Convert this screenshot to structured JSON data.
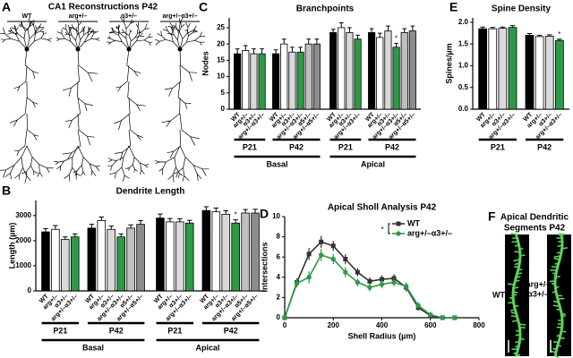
{
  "panel_letters": [
    "A",
    "B",
    "C",
    "D",
    "E",
    "F"
  ],
  "panel_a": {
    "title": "CA1 Reconstructions P42",
    "labels": [
      "WT",
      "arg+/–",
      "α3+/–",
      "arg+/–α3+/–"
    ]
  },
  "panel_f": {
    "title_lines": [
      "Apical Dendritic",
      "Segments P42"
    ],
    "labels": [
      {
        "lines": [
          "WT"
        ]
      },
      {
        "lines": [
          "arg+/–",
          "α3+/–"
        ]
      }
    ]
  },
  "chart_data": [
    {
      "type": "grouped_bar",
      "title": "Dendrite Length",
      "ylabel": "Length (µm)",
      "ylim": [
        0,
        3600
      ],
      "yticks": [
        0,
        1000,
        2000,
        3000
      ],
      "sections": [
        {
          "name": "Basal",
          "groups": [
            {
              "name": "P21",
              "categories": [
                "WT",
                "arg+/–",
                "α3+/–",
                "arg+/–α3+/–"
              ],
              "values": [
                2350,
                2450,
                2050,
                2150
              ],
              "errors": [
                130,
                150,
                100,
                120
              ],
              "colors": [
                "#000000",
                "#ffffff",
                "#d9d9d9",
                "#2e9a48"
              ]
            },
            {
              "name": "P42",
              "categories": [
                "WT",
                "arg+/–",
                "α3+/–",
                "arg+/–α3+/–",
                "α5+/–",
                "arg+/–α5+/–"
              ],
              "values": [
                2500,
                2800,
                2450,
                2150,
                2500,
                2650
              ],
              "errors": [
                150,
                140,
                130,
                120,
                130,
                150
              ],
              "colors": [
                "#000000",
                "#ffffff",
                "#d9d9d9",
                "#2e9a48",
                "#bfbfbf",
                "#8c8c8c"
              ]
            }
          ]
        },
        {
          "name": "Apical",
          "groups": [
            {
              "name": "P21",
              "categories": [
                "WT",
                "arg+/–",
                "α3+/–",
                "arg+/–α3+/–"
              ],
              "values": [
                2900,
                2750,
                2750,
                2700
              ],
              "errors": [
                160,
                130,
                120,
                110
              ],
              "colors": [
                "#000000",
                "#ffffff",
                "#d9d9d9",
                "#2e9a48"
              ]
            },
            {
              "name": "P42",
              "categories": [
                "WT",
                "arg+/–",
                "α3+/–",
                "arg+/–α3+/–",
                "α5+/–",
                "arg+/–α5+/–"
              ],
              "values": [
                3200,
                3150,
                3050,
                2700,
                3100,
                3100
              ],
              "errors": [
                150,
                150,
                140,
                130,
                140,
                150
              ],
              "colors": [
                "#000000",
                "#ffffff",
                "#d9d9d9",
                "#2e9a48",
                "#bfbfbf",
                "#8c8c8c"
              ],
              "markers": [
                null,
                null,
                null,
                "*",
                null,
                null
              ]
            }
          ]
        }
      ]
    },
    {
      "type": "grouped_bar",
      "title": "Branchpoints",
      "ylabel": "Nodes",
      "ylim": [
        0,
        28
      ],
      "yticks": [
        0,
        5,
        10,
        15,
        20,
        25
      ],
      "sections": [
        {
          "name": "Basal",
          "groups": [
            {
              "name": "P21",
              "categories": [
                "WT",
                "arg+/–",
                "α3+/–",
                "arg+/–α3+/–"
              ],
              "values": [
                17,
                18,
                17,
                17
              ],
              "errors": [
                1.5,
                1.5,
                1.5,
                1.5
              ],
              "colors": [
                "#000000",
                "#ffffff",
                "#d9d9d9",
                "#2e9a48"
              ]
            },
            {
              "name": "P42",
              "categories": [
                "WT",
                "arg+/–",
                "α3+/–",
                "arg+/–α3+/–",
                "α5+/–",
                "arg+/–α5+/–"
              ],
              "values": [
                17,
                20,
                17.5,
                17.5,
                20,
                20
              ],
              "errors": [
                1.2,
                1.5,
                1.5,
                1.5,
                1.5,
                1.5
              ],
              "colors": [
                "#000000",
                "#ffffff",
                "#d9d9d9",
                "#2e9a48",
                "#bfbfbf",
                "#8c8c8c"
              ]
            }
          ]
        },
        {
          "name": "Apical",
          "groups": [
            {
              "name": "P21",
              "categories": [
                "WT",
                "arg+/–",
                "α3+/–",
                "arg+/–α3+/–"
              ],
              "values": [
                23.5,
                25,
                23.5,
                21.5
              ],
              "errors": [
                1,
                1.5,
                1.5,
                1.2
              ],
              "colors": [
                "#000000",
                "#ffffff",
                "#d9d9d9",
                "#2e9a48"
              ]
            },
            {
              "name": "P42",
              "categories": [
                "WT",
                "arg+/–",
                "α3+/–",
                "arg+/–α3+/–",
                "α5+/–",
                "arg+/–α5+/–"
              ],
              "values": [
                23.5,
                22,
                24,
                19,
                23.5,
                24
              ],
              "errors": [
                1.2,
                1.3,
                1.5,
                1.2,
                1.2,
                1.5
              ],
              "colors": [
                "#000000",
                "#ffffff",
                "#d9d9d9",
                "#2e9a48",
                "#bfbfbf",
                "#8c8c8c"
              ],
              "markers": [
                null,
                null,
                null,
                "*",
                null,
                null
              ]
            }
          ]
        }
      ]
    },
    {
      "type": "line",
      "title": "Apical Sholl Analysis P42",
      "xlabel": "Shell Radius (µm)",
      "ylabel": "Intersections",
      "x": [
        0,
        50,
        100,
        150,
        200,
        250,
        300,
        350,
        400,
        450,
        500,
        550,
        600,
        650,
        700
      ],
      "xlim": [
        0,
        800
      ],
      "xticks": [
        0,
        200,
        400,
        600,
        800
      ],
      "ylim": [
        0,
        10
      ],
      "yticks": [
        0,
        2,
        4,
        6,
        8,
        10
      ],
      "legend_annotation": "*",
      "series": [
        {
          "name": "WT",
          "color": "#333333",
          "marker": "square",
          "values": [
            0,
            3.5,
            6.3,
            7.5,
            7.1,
            5.8,
            4.5,
            3.6,
            3.8,
            3.9,
            3.0,
            1.0,
            0.2,
            0,
            0
          ],
          "errors": [
            0,
            0.4,
            0.6,
            0.6,
            0.5,
            0.5,
            0.4,
            0.4,
            0.4,
            0.4,
            0.4,
            0.3,
            0.1,
            0,
            0
          ]
        },
        {
          "name": "arg+/–α3+/–",
          "color": "#2e9a48",
          "marker": "circle",
          "values": [
            0,
            3.4,
            4.0,
            6.2,
            5.8,
            4.5,
            3.5,
            3.0,
            3.3,
            3.5,
            3.1,
            1.2,
            0.3,
            0,
            0
          ],
          "errors": [
            0,
            0.4,
            0.6,
            0.6,
            0.5,
            0.5,
            0.4,
            0.4,
            0.4,
            0.4,
            0.4,
            0.3,
            0.1,
            0,
            0
          ]
        }
      ]
    },
    {
      "type": "grouped_bar",
      "title": "Spine Density",
      "ylabel": "Spines/µm",
      "ylim": [
        0,
        2.1
      ],
      "yticks": [
        {
          "value": 0,
          "label": "0.0"
        },
        0.5,
        {
          "value": 1,
          "label": "1.0"
        },
        1.5,
        {
          "value": 2,
          "label": "2.0"
        }
      ],
      "groups": [
        {
          "name": "P21",
          "categories": [
            "WT",
            "arg+/–",
            "α3+/–",
            "arg+/–α3+/–"
          ],
          "values": [
            1.85,
            1.85,
            1.86,
            1.88
          ],
          "errors": [
            0.04,
            0.03,
            0.03,
            0.04
          ],
          "colors": [
            "#000000",
            "#ffffff",
            "#d9d9d9",
            "#2e9a48"
          ]
        },
        {
          "name": "P42",
          "categories": [
            "WT",
            "arg+/–",
            "α3+/–",
            "arg+/–α3+/–"
          ],
          "values": [
            1.7,
            1.67,
            1.68,
            1.58
          ],
          "errors": [
            0.04,
            0.03,
            0.03,
            0.03
          ],
          "colors": [
            "#000000",
            "#ffffff",
            "#d9d9d9",
            "#2e9a48"
          ],
          "markers": [
            null,
            null,
            null,
            "*"
          ]
        }
      ]
    }
  ]
}
